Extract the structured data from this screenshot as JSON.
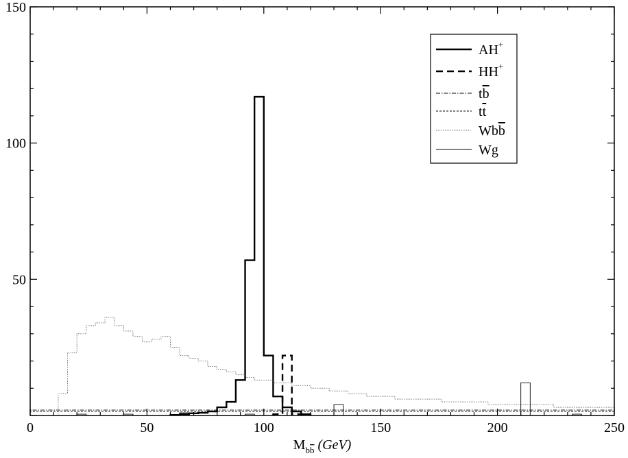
{
  "chart_data": {
    "type": "line",
    "xlabel": {
      "main": "M",
      "subscript": "b",
      "subscript_bar": "b",
      "unit": "(GeV)"
    },
    "ylabel": "",
    "xlim": [
      0,
      250
    ],
    "ylim": [
      0,
      150
    ],
    "x_ticks": [
      "0",
      "50",
      "100",
      "150",
      "200",
      "250"
    ],
    "y_ticks": [
      "50",
      "100",
      "150"
    ],
    "legend_position": "top-right",
    "legend": [
      {
        "id": "AH",
        "base": "AH",
        "sup": "+",
        "style": "solid-thick"
      },
      {
        "id": "HH",
        "base": "HH",
        "sup": "+",
        "style": "dashed-thick"
      },
      {
        "id": "tb",
        "base": "t",
        "bar": "b",
        "style": "dash-dot"
      },
      {
        "id": "tt",
        "base": "t",
        "bar": "t",
        "style": "dashed-thin"
      },
      {
        "id": "Wbb",
        "base": "Wb",
        "bar": "b",
        "style": "dotted"
      },
      {
        "id": "Wg",
        "base": "Wg",
        "style": "solid-thin"
      }
    ],
    "bin_width": 4,
    "series": [
      {
        "id": "AH",
        "edges": [
          60,
          64,
          68,
          72,
          76,
          80,
          84,
          88,
          92,
          96,
          100,
          104,
          108,
          112,
          116,
          120
        ],
        "values": [
          0.2,
          0.5,
          0.8,
          1,
          1.5,
          3,
          5,
          13,
          57,
          117,
          22,
          7,
          3,
          1.5,
          0.5
        ]
      },
      {
        "id": "HH",
        "edges": [
          104,
          108,
          112,
          116
        ],
        "values": [
          0.5,
          22,
          0.5
        ]
      },
      {
        "id": "tb",
        "edges": [
          0,
          250
        ],
        "values": [
          2
        ]
      },
      {
        "id": "tt",
        "edges": [
          0,
          250
        ],
        "values": [
          1.5
        ]
      },
      {
        "id": "Wbb",
        "edges": [
          12,
          16,
          20,
          24,
          28,
          32,
          36,
          40,
          44,
          48,
          52,
          56,
          60,
          64,
          68,
          72,
          76,
          80,
          84,
          88,
          92,
          96,
          100,
          104,
          108,
          112,
          116,
          120,
          124,
          128,
          132,
          136,
          140,
          144,
          148,
          152,
          156,
          160,
          164,
          168,
          172,
          176,
          180,
          184,
          188,
          192,
          196,
          200,
          204,
          208,
          212,
          216,
          220,
          224,
          228,
          232,
          236,
          240,
          244,
          248,
          250
        ],
        "values": [
          8,
          23,
          30,
          33,
          34,
          36,
          33,
          31,
          29,
          27,
          28,
          29,
          25,
          22,
          21,
          20,
          18,
          17,
          16,
          15,
          14,
          13,
          13,
          12,
          12,
          11,
          11,
          10,
          10,
          9,
          9,
          8,
          8,
          7,
          7,
          7,
          6,
          6,
          6,
          6,
          6,
          5,
          5,
          5,
          5,
          5,
          4,
          4,
          4,
          4,
          4,
          4,
          4,
          3,
          3,
          3,
          3,
          3,
          3,
          3
        ]
      },
      {
        "id": "Wg",
        "edges": [
          20,
          24,
          40,
          44,
          64,
          68,
          92,
          96,
          130,
          134,
          210,
          214,
          232,
          236
        ],
        "values": [
          0.5,
          0,
          0.5,
          0,
          1,
          0,
          0.5,
          0,
          4,
          0,
          12,
          0,
          0.5
        ]
      }
    ]
  }
}
